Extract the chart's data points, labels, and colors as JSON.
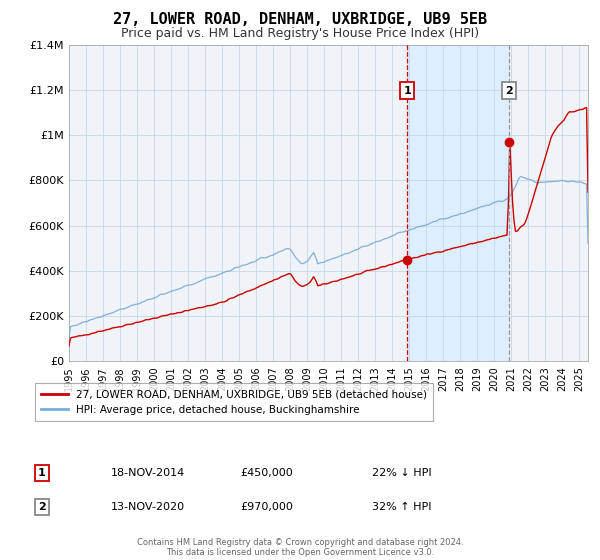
{
  "title": "27, LOWER ROAD, DENHAM, UXBRIDGE, UB9 5EB",
  "subtitle": "Price paid vs. HM Land Registry's House Price Index (HPI)",
  "title_fontsize": 11,
  "subtitle_fontsize": 9,
  "ylim": [
    0,
    1400000
  ],
  "xlim_start": 1995.0,
  "xlim_end": 2025.5,
  "yticks": [
    0,
    200000,
    400000,
    600000,
    800000,
    1000000,
    1200000,
    1400000
  ],
  "ytick_labels": [
    "£0",
    "£200K",
    "£400K",
    "£600K",
    "£800K",
    "£1M",
    "£1.2M",
    "£1.4M"
  ],
  "xtick_years": [
    1995,
    1996,
    1997,
    1998,
    1999,
    2000,
    2001,
    2002,
    2003,
    2004,
    2005,
    2006,
    2007,
    2008,
    2009,
    2010,
    2011,
    2012,
    2013,
    2014,
    2015,
    2016,
    2017,
    2018,
    2019,
    2020,
    2021,
    2022,
    2023,
    2024,
    2025
  ],
  "sale1_x": 2014.88,
  "sale1_y": 450000,
  "sale1_date": "18-NOV-2014",
  "sale1_price": "£450,000",
  "sale1_hpi": "22% ↓ HPI",
  "sale2_x": 2020.87,
  "sale2_y": 970000,
  "sale2_date": "13-NOV-2020",
  "sale2_price": "£970,000",
  "sale2_hpi": "32% ↑ HPI",
  "shade_start": 2014.88,
  "shade_end": 2020.87,
  "red_line_color": "#cc0000",
  "blue_line_color": "#7aaddb",
  "shade_color": "#ddeeff",
  "grid_color": "#c8d8e8",
  "background_color": "#f0f4f8",
  "vline1_color": "#cc0000",
  "vline2_color": "#999999",
  "legend_line1": "27, LOWER ROAD, DENHAM, UXBRIDGE, UB9 5EB (detached house)",
  "legend_line2": "HPI: Average price, detached house, Buckinghamshire",
  "footer": "Contains HM Land Registry data © Crown copyright and database right 2024.\nThis data is licensed under the Open Government Licence v3.0."
}
